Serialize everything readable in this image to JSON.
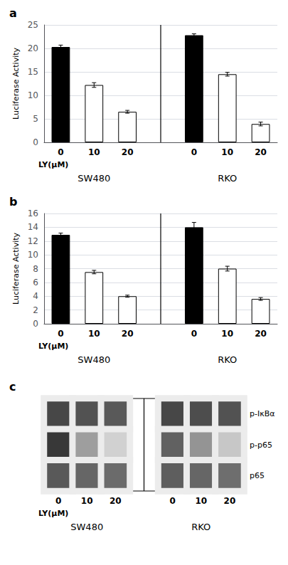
{
  "chart_data": [
    {
      "type": "bar",
      "title": "a",
      "categories": [
        "0",
        "10",
        "20"
      ],
      "xlabel": "LY(μM)",
      "ylabel": "Luciferase Activity",
      "groups": [
        {
          "name": "SW480",
          "values": [
            20.3,
            12.2,
            6.5
          ],
          "errors": [
            0.4,
            0.5,
            0.3
          ],
          "colors": [
            "#000000",
            "#ffffff",
            "#ffffff"
          ]
        },
        {
          "name": "RKO",
          "values": [
            22.8,
            14.5,
            3.9
          ],
          "errors": [
            0.3,
            0.4,
            0.4
          ],
          "colors": [
            "#000000",
            "#ffffff",
            "#ffffff"
          ]
        }
      ],
      "ylim": [
        0,
        25
      ],
      "yticks": [
        0,
        5,
        10,
        15,
        20,
        25
      ],
      "grid": true
    },
    {
      "type": "bar",
      "title": "b",
      "categories": [
        "0",
        "10",
        "20"
      ],
      "xlabel": "LY(μM)",
      "ylabel": "Luciferase Activity",
      "groups": [
        {
          "name": "SW480",
          "values": [
            12.9,
            7.5,
            4.0
          ],
          "errors": [
            0.25,
            0.25,
            0.15
          ],
          "colors": [
            "#000000",
            "#ffffff",
            "#ffffff"
          ]
        },
        {
          "name": "RKO",
          "values": [
            14.0,
            8.0,
            3.6
          ],
          "errors": [
            0.7,
            0.35,
            0.2
          ],
          "colors": [
            "#000000",
            "#ffffff",
            "#ffffff"
          ]
        }
      ],
      "ylim": [
        0,
        16
      ],
      "yticks": [
        0,
        2,
        4,
        6,
        8,
        10,
        12,
        14,
        16
      ],
      "grid": true
    },
    {
      "type": "heatmap",
      "title": "c",
      "categories": [
        "0",
        "10",
        "20"
      ],
      "xlabel": "LY(μM)",
      "rows": [
        "p-IκBα",
        "p-p65",
        "p65"
      ],
      "groups": [
        {
          "name": "SW480",
          "cells": [
            [
              0.72,
              0.68,
              0.65
            ],
            [
              0.78,
              0.38,
              0.18
            ],
            [
              0.65,
              0.6,
              0.58
            ]
          ]
        },
        {
          "name": "RKO",
          "cells": [
            [
              0.72,
              0.7,
              0.68
            ],
            [
              0.62,
              0.42,
              0.22
            ],
            [
              0.63,
              0.6,
              0.57
            ]
          ]
        }
      ],
      "zlim": [
        0,
        1
      ]
    }
  ]
}
